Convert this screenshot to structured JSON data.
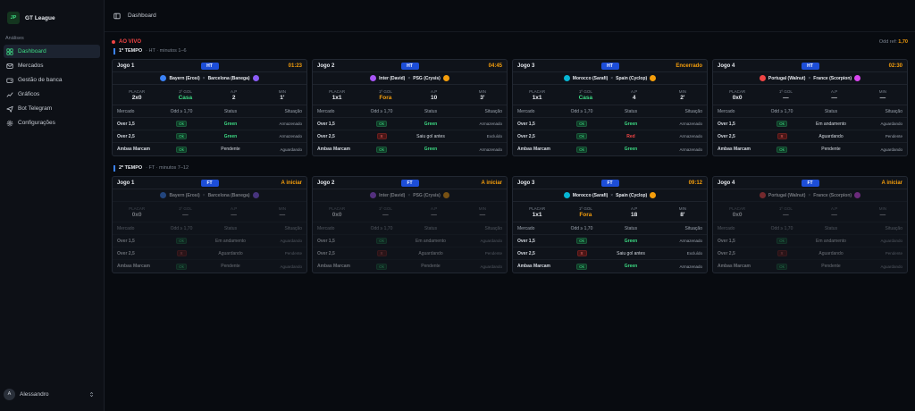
{
  "app": {
    "name": "GT League",
    "logo_text": "JP"
  },
  "sidebar": {
    "section": "Análises",
    "items": [
      {
        "label": "Dashboard",
        "icon": "dashboard-icon",
        "active": true
      },
      {
        "label": "Mercados",
        "icon": "mail-icon",
        "active": false
      },
      {
        "label": "Gestão de banca",
        "icon": "wallet-icon",
        "active": false
      },
      {
        "label": "Gráficos",
        "icon": "chart-icon",
        "active": false
      },
      {
        "label": "Bot Telegram",
        "icon": "send-icon",
        "active": false
      },
      {
        "label": "Configurações",
        "icon": "gear-icon",
        "active": false
      }
    ],
    "user": {
      "initial": "A",
      "name": "Alessandro"
    }
  },
  "header": {
    "title": "Dashboard"
  },
  "live": {
    "label": "AO VIVO",
    "odd_ref_label": "Odd ref:",
    "odd_ref_value": "1,70"
  },
  "periods": [
    {
      "title": "1º TEMPO",
      "subtitle": "· HT · minutos 1–6",
      "dim": false,
      "games": [
        {
          "title": "Jogo 1",
          "badge": "HT",
          "status": "01:23",
          "home": "Bayern (Erosi)",
          "away": "Barcelona (Banega)",
          "home_color": "#3b82f6",
          "away_color": "#8b5cf6",
          "stats": {
            "placar_label": "PLACAR",
            "placar": "2x0",
            "gol_label": "1º GOL",
            "gol": "Casa",
            "gol_color": "green",
            "ap_label": "A.P",
            "ap": "2",
            "min_label": "MIN",
            "min": "1'"
          },
          "head": {
            "mercado": "Mercado",
            "odd": "Odd ≥ 1,70",
            "status": "Status",
            "situacao": "Situação"
          },
          "rows": [
            {
              "mercado": "Over 1,5",
              "pill": "Ok",
              "pill_type": "ok",
              "status": "Green",
              "status_type": "green",
              "situacao": "Armazenado"
            },
            {
              "mercado": "Over 2,5",
              "pill": "Ok",
              "pill_type": "ok",
              "status": "Green",
              "status_type": "green",
              "situacao": "Armazenado"
            },
            {
              "mercado": "Ambas Marcam",
              "pill": "Ok",
              "pill_type": "ok",
              "status": "Pendente",
              "status_type": "normal",
              "situacao": "Aguardando"
            }
          ]
        },
        {
          "title": "Jogo 2",
          "badge": "HT",
          "status": "04:45",
          "home": "Inter (David)",
          "away": "PSG (Crysis)",
          "home_color": "#a855f7",
          "away_color": "#f59e0b",
          "stats": {
            "placar_label": "PLACAR",
            "placar": "1x1",
            "gol_label": "1º GOL",
            "gol": "Fora",
            "gol_color": "amber",
            "ap_label": "A.P",
            "ap": "10",
            "min_label": "MIN",
            "min": "3'"
          },
          "head": {
            "mercado": "Mercado",
            "odd": "Odd ≥ 1,70",
            "status": "Status",
            "situacao": "Situação"
          },
          "rows": [
            {
              "mercado": "Over 1,5",
              "pill": "Ok",
              "pill_type": "ok",
              "status": "Green",
              "status_type": "green",
              "situacao": "Armazenado"
            },
            {
              "mercado": "Over 2,5",
              "pill": "X",
              "pill_type": "x",
              "status": "Saiu gol antes",
              "status_type": "normal",
              "situacao": "Excluído"
            },
            {
              "mercado": "Ambas Marcam",
              "pill": "Ok",
              "pill_type": "ok",
              "status": "Green",
              "status_type": "green",
              "situacao": "Armazenado"
            }
          ]
        },
        {
          "title": "Jogo 3",
          "badge": "HT",
          "status": "Encerrado",
          "home": "Morocco (Sarafi)",
          "away": "Spain (Cyclop)",
          "home_color": "#06b6d4",
          "away_color": "#f59e0b",
          "stats": {
            "placar_label": "PLACAR",
            "placar": "1x1",
            "gol_label": "1º GOL",
            "gol": "Casa",
            "gol_color": "green",
            "ap_label": "A.P",
            "ap": "4",
            "min_label": "MIN",
            "min": "2'"
          },
          "head": {
            "mercado": "Mercado",
            "odd": "Odd ≥ 1,70",
            "status": "Status",
            "situacao": "Situação"
          },
          "rows": [
            {
              "mercado": "Over 1,5",
              "pill": "Ok",
              "pill_type": "ok",
              "status": "Green",
              "status_type": "green",
              "situacao": "Armazenado"
            },
            {
              "mercado": "Over 2,5",
              "pill": "Ok",
              "pill_type": "ok",
              "status": "Red",
              "status_type": "red",
              "situacao": "Armazenado"
            },
            {
              "mercado": "Ambas Marcam",
              "pill": "Ok",
              "pill_type": "ok",
              "status": "Green",
              "status_type": "green",
              "situacao": "Armazenado"
            }
          ]
        },
        {
          "title": "Jogo 4",
          "badge": "HT",
          "status": "02:30",
          "home": "Portugal (Walnut)",
          "away": "France (Scorpion)",
          "home_color": "#ef4444",
          "away_color": "#d946ef",
          "stats": {
            "placar_label": "PLACAR",
            "placar": "0x0",
            "gol_label": "1º GOL",
            "gol": "—",
            "gol_color": "normal",
            "ap_label": "A.P",
            "ap": "—",
            "min_label": "MIN",
            "min": "—"
          },
          "head": {
            "mercado": "Mercado",
            "odd": "Odd ≥ 1,70",
            "status": "Status",
            "situacao": "Situação"
          },
          "rows": [
            {
              "mercado": "Over 1,5",
              "pill": "Ok",
              "pill_type": "ok",
              "status": "Em andamento",
              "status_type": "normal",
              "situacao": "Aguardando"
            },
            {
              "mercado": "Over 2,5",
              "pill": "X",
              "pill_type": "x",
              "status": "Aguardando",
              "status_type": "normal",
              "situacao": "Pendente"
            },
            {
              "mercado": "Ambas Marcam",
              "pill": "Ok",
              "pill_type": "ok",
              "status": "Pendente",
              "status_type": "normal",
              "situacao": "Aguardando"
            }
          ]
        }
      ]
    },
    {
      "title": "2º TEMPO",
      "subtitle": "· FT · minutos 7–12",
      "dim": true,
      "games": [
        {
          "title": "Jogo 1",
          "badge": "FT",
          "status": "A iniciar",
          "home": "Bayern (Erosi)",
          "away": "Barcelona (Banega)",
          "home_color": "#3b82f6",
          "away_color": "#8b5cf6",
          "dim": true,
          "stats": {
            "placar_label": "PLACAR",
            "placar": "0x0",
            "gol_label": "1º GOL",
            "gol": "—",
            "gol_color": "normal",
            "ap_label": "A.P",
            "ap": "—",
            "min_label": "MIN",
            "min": "—"
          },
          "head": {
            "mercado": "Mercado",
            "odd": "Odd ≥ 1,70",
            "status": "Status",
            "situacao": "Situação"
          },
          "rows": [
            {
              "mercado": "Over 1,5",
              "pill": "Ok",
              "pill_type": "ok",
              "status": "Em andamento",
              "status_type": "normal",
              "situacao": "Aguardando"
            },
            {
              "mercado": "Over 2,5",
              "pill": "X",
              "pill_type": "x",
              "status": "Aguardando",
              "status_type": "normal",
              "situacao": "Pendente"
            },
            {
              "mercado": "Ambas Marcam",
              "pill": "Ok",
              "pill_type": "ok",
              "status": "Pendente",
              "status_type": "normal",
              "situacao": "Aguardando"
            }
          ]
        },
        {
          "title": "Jogo 2",
          "badge": "FT",
          "status": "A iniciar",
          "home": "Inter (David)",
          "away": "PSG (Crysis)",
          "home_color": "#a855f7",
          "away_color": "#f59e0b",
          "dim": true,
          "stats": {
            "placar_label": "PLACAR",
            "placar": "0x0",
            "gol_label": "1º GOL",
            "gol": "—",
            "gol_color": "normal",
            "ap_label": "A.P",
            "ap": "—",
            "min_label": "MIN",
            "min": "—"
          },
          "head": {
            "mercado": "Mercado",
            "odd": "Odd ≥ 1,70",
            "status": "Status",
            "situacao": "Situação"
          },
          "rows": [
            {
              "mercado": "Over 1,5",
              "pill": "Ok",
              "pill_type": "ok",
              "status": "Em andamento",
              "status_type": "normal",
              "situacao": "Aguardando"
            },
            {
              "mercado": "Over 2,5",
              "pill": "X",
              "pill_type": "x",
              "status": "Aguardando",
              "status_type": "normal",
              "situacao": "Pendente"
            },
            {
              "mercado": "Ambas Marcam",
              "pill": "Ok",
              "pill_type": "ok",
              "status": "Pendente",
              "status_type": "normal",
              "situacao": "Aguardando"
            }
          ]
        },
        {
          "title": "Jogo 3",
          "badge": "FT",
          "status": "09:12",
          "home": "Morocco (Sarafi)",
          "away": "Spain (Cyclop)",
          "home_color": "#06b6d4",
          "away_color": "#f59e0b",
          "dim": false,
          "stats": {
            "placar_label": "PLACAR",
            "placar": "1x1",
            "gol_label": "1º GOL",
            "gol": "Fora",
            "gol_color": "amber",
            "ap_label": "A.P",
            "ap": "18",
            "min_label": "MIN",
            "min": "8'"
          },
          "head": {
            "mercado": "Mercado",
            "odd": "Odd ≥ 1,70",
            "status": "Status",
            "situacao": "Situação"
          },
          "rows": [
            {
              "mercado": "Over 1,5",
              "pill": "Ok",
              "pill_type": "ok",
              "status": "Green",
              "status_type": "green",
              "situacao": "Armazenado"
            },
            {
              "mercado": "Over 2,5",
              "pill": "X",
              "pill_type": "x",
              "status": "Saiu gol antes",
              "status_type": "normal",
              "situacao": "Excluído"
            },
            {
              "mercado": "Ambas Marcam",
              "pill": "Ok",
              "pill_type": "ok",
              "status": "Green",
              "status_type": "green",
              "situacao": "Armazenado"
            }
          ]
        },
        {
          "title": "Jogo 4",
          "badge": "FT",
          "status": "A iniciar",
          "home": "Portugal (Walnut)",
          "away": "France (Scorpion)",
          "home_color": "#ef4444",
          "away_color": "#d946ef",
          "dim": true,
          "stats": {
            "placar_label": "PLACAR",
            "placar": "0x0",
            "gol_label": "1º GOL",
            "gol": "—",
            "gol_color": "normal",
            "ap_label": "A.P",
            "ap": "—",
            "min_label": "MIN",
            "min": "—"
          },
          "head": {
            "mercado": "Mercado",
            "odd": "Odd ≥ 1,70",
            "status": "Status",
            "situacao": "Situação"
          },
          "rows": [
            {
              "mercado": "Over 1,5",
              "pill": "Ok",
              "pill_type": "ok",
              "status": "Em andamento",
              "status_type": "normal",
              "situacao": "Aguardando"
            },
            {
              "mercado": "Over 2,5",
              "pill": "X",
              "pill_type": "x",
              "status": "Aguardando",
              "status_type": "normal",
              "situacao": "Pendente"
            },
            {
              "mercado": "Ambas Marcam",
              "pill": "Ok",
              "pill_type": "ok",
              "status": "Pendente",
              "status_type": "normal",
              "situacao": "Aguardando"
            }
          ]
        }
      ]
    }
  ]
}
